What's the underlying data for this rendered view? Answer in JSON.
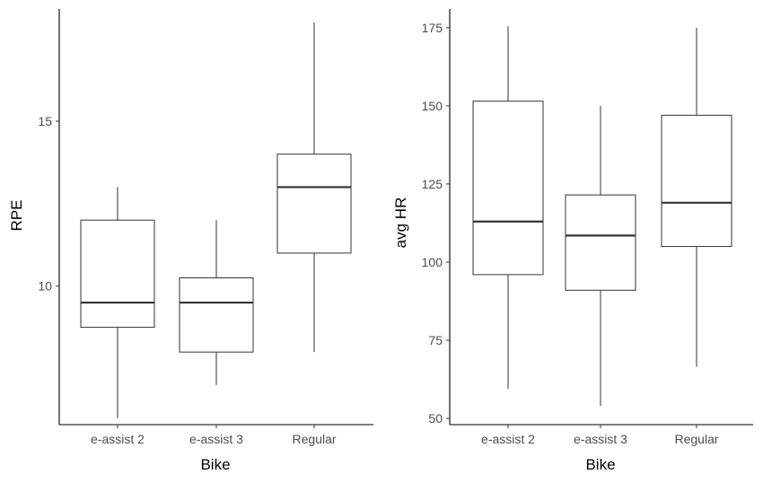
{
  "chart_data": [
    {
      "type": "box",
      "xlabel": "Bike",
      "ylabel": "RPE",
      "categories": [
        "e-assist 2",
        "e-assist 3",
        "Regular"
      ],
      "ylim": [
        5.8,
        18.4
      ],
      "yticks": [
        10,
        15
      ],
      "grid": false,
      "boxes": [
        {
          "category": "e-assist 2",
          "min": 6,
          "q1": 8.75,
          "median": 9.5,
          "q3": 12,
          "max": 13
        },
        {
          "category": "e-assist 3",
          "min": 7,
          "q1": 8,
          "median": 9.5,
          "q3": 10.25,
          "max": 12
        },
        {
          "category": "Regular",
          "min": 8,
          "q1": 11,
          "median": 13,
          "q3": 14,
          "max": 18
        }
      ]
    },
    {
      "type": "box",
      "xlabel": "Bike",
      "ylabel": "avg HR",
      "categories": [
        "e-assist 2",
        "e-assist 3",
        "Regular"
      ],
      "ylim": [
        48,
        181
      ],
      "yticks": [
        50,
        75,
        100,
        125,
        150,
        175
      ],
      "grid": false,
      "boxes": [
        {
          "category": "e-assist 2",
          "min": 59.5,
          "q1": 96,
          "median": 113,
          "q3": 151.5,
          "max": 175.5
        },
        {
          "category": "e-assist 3",
          "min": 54,
          "q1": 91,
          "median": 108.5,
          "q3": 121.5,
          "max": 150
        },
        {
          "category": "Regular",
          "min": 66.5,
          "q1": 105,
          "median": 119,
          "q3": 147,
          "max": 175
        }
      ]
    }
  ]
}
